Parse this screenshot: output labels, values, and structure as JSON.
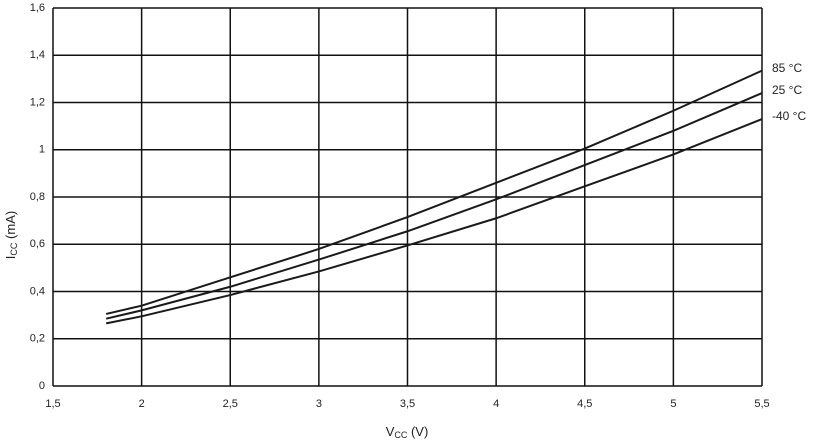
{
  "chart_data": {
    "type": "line",
    "x_label_parts": [
      "V",
      "CC",
      " (V)"
    ],
    "y_label_parts": [
      "I",
      "CC",
      " (mA)"
    ],
    "x": [
      1.8,
      2.0,
      2.5,
      3.0,
      3.5,
      4.0,
      4.5,
      5.0,
      5.5
    ],
    "series": [
      {
        "name": "85 °C",
        "color": "#1a1a1a",
        "values": [
          0.305,
          0.34,
          0.46,
          0.58,
          0.715,
          0.86,
          1.005,
          1.165,
          1.335
        ]
      },
      {
        "name": "25 °C",
        "color": "#1a1a1a",
        "values": [
          0.285,
          0.32,
          0.42,
          0.535,
          0.655,
          0.79,
          0.935,
          1.08,
          1.24
        ]
      },
      {
        "name": "-40 °C",
        "color": "#1a1a1a",
        "values": [
          0.265,
          0.295,
          0.385,
          0.485,
          0.595,
          0.71,
          0.845,
          0.98,
          1.13
        ]
      }
    ],
    "xlim": [
      1.5,
      5.5
    ],
    "xticks": [
      {
        "value": 1.5,
        "label": "1,5"
      },
      2,
      {
        "value": 2.5,
        "label": "2,5"
      },
      3,
      {
        "value": 3.5,
        "label": "3,5"
      },
      4,
      {
        "value": 4.5,
        "label": "4,5"
      },
      5,
      {
        "value": 5.5,
        "label": "5,5"
      }
    ],
    "ylim": [
      0,
      1.6
    ],
    "yticks": [
      0,
      {
        "value": 0.2,
        "label": "0,2"
      },
      {
        "value": 0.4,
        "label": "0,4"
      },
      {
        "value": 0.6,
        "label": "0,6"
      },
      {
        "value": 0.8,
        "label": "0,8"
      },
      1,
      {
        "value": 1.2,
        "label": "1,2"
      },
      {
        "value": 1.4,
        "label": "1,4"
      },
      {
        "value": 1.6,
        "label": "1,6"
      }
    ],
    "grid": true
  }
}
